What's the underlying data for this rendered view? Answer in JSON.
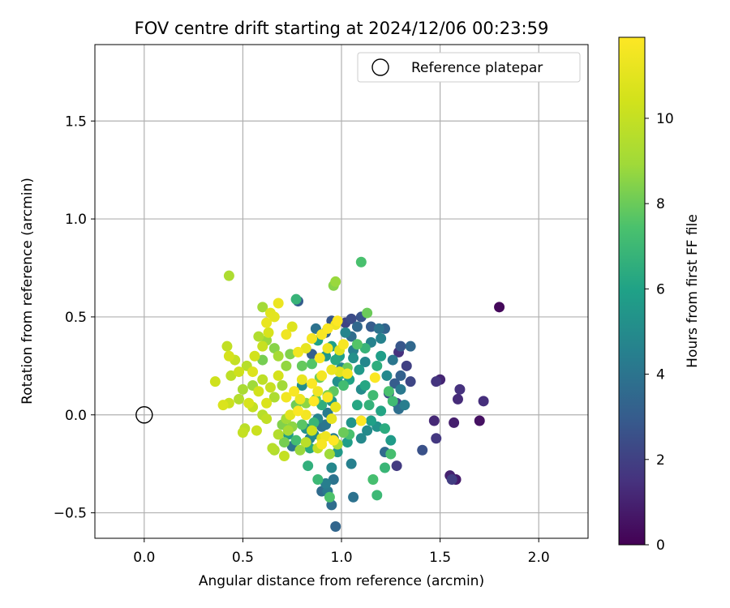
{
  "chart_data": {
    "type": "scatter",
    "title": "FOV centre drift starting at 2024/12/06 00:23:59",
    "xlabel": "Angular distance from reference (arcmin)",
    "ylabel": "Rotation from reference (arcmin)",
    "xlim": [
      -0.25,
      2.25
    ],
    "ylim": [
      -0.63,
      1.89
    ],
    "xticks": [
      0.0,
      0.5,
      1.0,
      1.5,
      2.0
    ],
    "xtick_labels": [
      "0.0",
      "0.5",
      "1.0",
      "1.5",
      "2.0"
    ],
    "yticks": [
      -0.5,
      0.0,
      0.5,
      1.0,
      1.5
    ],
    "ytick_labels": [
      "−0.5",
      "0.0",
      "0.5",
      "1.0",
      "1.5"
    ],
    "grid": true,
    "legend": {
      "location": "upper right",
      "entries": [
        "Reference platepar"
      ]
    },
    "reference_point": {
      "label": "Reference platepar",
      "x": 0.0,
      "y": 0.0,
      "marker": "open-circle"
    },
    "colorbar": {
      "label": "Hours from first FF file",
      "colormap": "viridis",
      "range": [
        0,
        11.9
      ],
      "ticks": [
        0,
        2,
        4,
        6,
        8,
        10
      ],
      "tick_labels": [
        "0",
        "2",
        "4",
        "6",
        "8",
        "10"
      ]
    },
    "series": [
      {
        "points": [
          [
            1.8,
            0.55,
            0.2
          ],
          [
            1.7,
            -0.03,
            0.5
          ],
          [
            1.58,
            -0.33,
            0.8
          ],
          [
            1.55,
            -0.31,
            1.0
          ],
          [
            1.59,
            0.08,
            1.3
          ],
          [
            1.6,
            0.13,
            1.5
          ],
          [
            1.72,
            0.07,
            1.4
          ],
          [
            1.5,
            0.18,
            1.1
          ],
          [
            1.48,
            0.17,
            1.6
          ],
          [
            1.48,
            -0.12,
            1.7
          ],
          [
            1.47,
            -0.03,
            1.2
          ],
          [
            1.57,
            -0.04,
            0.9
          ],
          [
            1.56,
            -0.33,
            1.9
          ],
          [
            1.35,
            0.17,
            2.2
          ],
          [
            1.41,
            -0.18,
            2.6
          ],
          [
            1.28,
            -0.26,
            1.8
          ],
          [
            1.33,
            0.25,
            2.0
          ],
          [
            1.29,
            0.32,
            1.5
          ],
          [
            1.28,
            0.06,
            2.4
          ],
          [
            1.27,
            0.16,
            3.0
          ],
          [
            1.35,
            0.35,
            3.5
          ],
          [
            1.3,
            0.35,
            2.8
          ],
          [
            1.3,
            0.2,
            3.2
          ],
          [
            1.29,
            0.03,
            3.8
          ],
          [
            1.3,
            0.13,
            4.2
          ],
          [
            1.32,
            0.05,
            4.4
          ],
          [
            1.24,
            0.11,
            2.5
          ],
          [
            1.22,
            -0.19,
            3.6
          ],
          [
            1.22,
            0.44,
            3.3
          ],
          [
            1.19,
            0.44,
            4.0
          ],
          [
            1.15,
            0.45,
            3.0
          ],
          [
            1.15,
            0.37,
            4.6
          ],
          [
            1.12,
            0.27,
            4.8
          ],
          [
            1.1,
            0.5,
            2.7
          ],
          [
            1.05,
            0.49,
            2.4
          ],
          [
            1.02,
            0.47,
            2.1
          ],
          [
            0.95,
            0.48,
            2.8
          ],
          [
            0.92,
            0.42,
            3.4
          ],
          [
            0.87,
            0.44,
            3.9
          ],
          [
            0.85,
            0.31,
            3.1
          ],
          [
            1.05,
            0.4,
            3.7
          ],
          [
            1.06,
            0.33,
            4.5
          ],
          [
            1.0,
            0.24,
            4.9
          ],
          [
            0.98,
            0.17,
            5.2
          ],
          [
            0.95,
            0.07,
            5.5
          ],
          [
            0.93,
            0.01,
            4.3
          ],
          [
            0.92,
            -0.05,
            4.1
          ],
          [
            0.88,
            -0.02,
            4.7
          ],
          [
            0.9,
            -0.06,
            3.9
          ],
          [
            0.86,
            -0.1,
            5.0
          ],
          [
            0.84,
            -0.12,
            4.6
          ],
          [
            0.82,
            -0.07,
            5.3
          ],
          [
            0.75,
            -0.16,
            4.0
          ],
          [
            0.73,
            -0.1,
            5.7
          ],
          [
            0.78,
            0.58,
            3.0
          ],
          [
            0.8,
            0.15,
            5.1
          ],
          [
            0.96,
            -0.12,
            4.4
          ],
          [
            0.98,
            -0.19,
            5.6
          ],
          [
            1.03,
            -0.14,
            5.8
          ],
          [
            1.05,
            -0.04,
            5.4
          ],
          [
            1.1,
            -0.12,
            4.9
          ],
          [
            1.13,
            -0.08,
            5.0
          ],
          [
            1.15,
            -0.03,
            5.9
          ],
          [
            1.18,
            -0.06,
            5.3
          ],
          [
            1.2,
            0.02,
            6.1
          ],
          [
            1.22,
            -0.07,
            6.4
          ],
          [
            1.25,
            -0.13,
            5.7
          ],
          [
            1.1,
            0.13,
            5.0
          ],
          [
            1.08,
            0.05,
            6.2
          ],
          [
            1.04,
            0.18,
            6.0
          ],
          [
            1.0,
            0.21,
            6.6
          ],
          [
            0.99,
            0.3,
            5.8
          ],
          [
            0.97,
            -0.57,
            3.4
          ],
          [
            0.95,
            -0.46,
            3.7
          ],
          [
            0.93,
            -0.39,
            4.2
          ],
          [
            0.9,
            -0.39,
            3.6
          ],
          [
            0.92,
            -0.35,
            4.4
          ],
          [
            0.96,
            -0.33,
            4.0
          ],
          [
            0.95,
            -0.27,
            4.8
          ],
          [
            1.05,
            -0.25,
            4.5
          ],
          [
            1.06,
            -0.42,
            3.9
          ],
          [
            0.83,
            -0.26,
            6.6
          ],
          [
            0.88,
            -0.33,
            7.0
          ],
          [
            0.94,
            -0.42,
            7.5
          ],
          [
            1.16,
            -0.33,
            7.3
          ],
          [
            1.18,
            -0.41,
            7.0
          ],
          [
            1.22,
            -0.27,
            6.9
          ],
          [
            1.25,
            -0.2,
            7.3
          ],
          [
            1.26,
            0.07,
            7.1
          ],
          [
            1.24,
            0.12,
            7.4
          ],
          [
            1.1,
            0.78,
            7.4
          ],
          [
            1.13,
            0.52,
            8.0
          ],
          [
            0.96,
            0.66,
            8.5
          ],
          [
            0.97,
            0.68,
            8.8
          ],
          [
            0.77,
            0.59,
            6.8
          ],
          [
            0.6,
            0.55,
            9.0
          ],
          [
            0.43,
            0.71,
            9.3
          ],
          [
            1.12,
            0.34,
            6.8
          ],
          [
            1.08,
            0.36,
            7.6
          ],
          [
            1.03,
            0.24,
            8.0
          ],
          [
            1.01,
            0.15,
            7.2
          ],
          [
            0.96,
            0.12,
            7.8
          ],
          [
            0.93,
            0.1,
            8.3
          ],
          [
            0.87,
            0.08,
            7.5
          ],
          [
            0.82,
            0.06,
            8.6
          ],
          [
            0.77,
            0.05,
            8.1
          ],
          [
            0.72,
            -0.02,
            9.0
          ],
          [
            0.7,
            -0.05,
            8.4
          ],
          [
            0.73,
            -0.08,
            9.2
          ],
          [
            0.68,
            -0.1,
            9.5
          ],
          [
            0.65,
            -0.17,
            9.6
          ],
          [
            0.71,
            -0.21,
            10.0
          ],
          [
            0.66,
            -0.18,
            9.4
          ],
          [
            0.62,
            -0.02,
            9.9
          ],
          [
            0.57,
            -0.08,
            10.2
          ],
          [
            0.5,
            -0.09,
            10.0
          ],
          [
            0.51,
            -0.07,
            9.7
          ],
          [
            0.48,
            0.08,
            9.5
          ],
          [
            0.43,
            0.06,
            10.2
          ],
          [
            0.44,
            0.2,
            9.8
          ],
          [
            0.46,
            0.28,
            10.0
          ],
          [
            0.42,
            0.35,
            9.9
          ],
          [
            0.43,
            0.3,
            10.5
          ],
          [
            0.48,
            0.22,
            10.3
          ],
          [
            0.52,
            0.25,
            9.6
          ],
          [
            0.56,
            0.3,
            10.4
          ],
          [
            0.55,
            0.22,
            10.8
          ],
          [
            0.6,
            0.35,
            10.1
          ],
          [
            0.63,
            0.42,
            10.6
          ],
          [
            0.62,
            0.47,
            11.2
          ],
          [
            0.64,
            0.52,
            10.9
          ],
          [
            0.66,
            0.5,
            11.0
          ],
          [
            0.68,
            0.57,
            11.3
          ],
          [
            0.72,
            0.41,
            11.4
          ],
          [
            0.75,
            0.45,
            10.8
          ],
          [
            0.78,
            0.32,
            11.5
          ],
          [
            0.82,
            0.34,
            11.1
          ],
          [
            0.85,
            0.39,
            11.6
          ],
          [
            0.9,
            0.41,
            11.7
          ],
          [
            0.93,
            0.44,
            11.8
          ],
          [
            0.97,
            0.46,
            11.5
          ],
          [
            0.98,
            0.48,
            11.9
          ],
          [
            0.89,
            0.29,
            11.8
          ],
          [
            0.93,
            0.34,
            11.4
          ],
          [
            0.99,
            0.33,
            10.9
          ],
          [
            1.01,
            0.36,
            11.7
          ],
          [
            0.95,
            0.23,
            11.3
          ],
          [
            0.9,
            0.2,
            11.6
          ],
          [
            0.85,
            0.16,
            11.8
          ],
          [
            0.8,
            0.18,
            11.2
          ],
          [
            0.76,
            0.12,
            11.7
          ],
          [
            0.72,
            0.09,
            11.5
          ],
          [
            0.74,
            0.0,
            11.0
          ],
          [
            0.78,
            0.02,
            11.8
          ],
          [
            0.79,
            0.08,
            11.3
          ],
          [
            0.82,
            0.0,
            11.6
          ],
          [
            0.86,
            0.07,
            11.9
          ],
          [
            0.88,
            0.12,
            11.4
          ],
          [
            0.93,
            0.09,
            11.7
          ],
          [
            0.97,
            0.04,
            11.2
          ],
          [
            0.96,
            -0.13,
            11.9
          ],
          [
            0.92,
            -0.11,
            11.4
          ],
          [
            0.9,
            -0.15,
            11.7
          ],
          [
            0.95,
            -0.02,
            11.1
          ],
          [
            1.1,
            -0.03,
            11.9
          ],
          [
            1.17,
            0.19,
            11.8
          ],
          [
            1.03,
            0.21,
            11.6
          ],
          [
            0.99,
            0.22,
            11.0
          ],
          [
            0.68,
            0.2,
            10.5
          ],
          [
            0.64,
            0.14,
            10.1
          ],
          [
            0.6,
            0.18,
            9.8
          ],
          [
            0.58,
            0.12,
            10.4
          ],
          [
            0.55,
            0.04,
            10.0
          ],
          [
            0.6,
            0.0,
            9.6
          ],
          [
            0.62,
            0.06,
            10.7
          ],
          [
            0.66,
            0.09,
            9.3
          ],
          [
            0.7,
            0.15,
            9.0
          ],
          [
            0.72,
            0.25,
            8.7
          ],
          [
            0.68,
            0.3,
            9.1
          ],
          [
            0.66,
            0.34,
            8.5
          ],
          [
            0.62,
            0.38,
            8.8
          ],
          [
            0.58,
            0.4,
            9.4
          ],
          [
            0.6,
            0.28,
            8.2
          ],
          [
            0.55,
            0.15,
            8.9
          ],
          [
            0.5,
            0.13,
            9.2
          ],
          [
            0.53,
            0.06,
            10.6
          ],
          [
            0.36,
            0.17,
            10.3
          ],
          [
            0.4,
            0.05,
            10.7
          ],
          [
            0.74,
            0.31,
            8.4
          ],
          [
            0.8,
            0.25,
            7.9
          ],
          [
            0.85,
            0.26,
            7.6
          ],
          [
            0.89,
            0.19,
            8.1
          ],
          [
            0.9,
            0.05,
            6.5
          ],
          [
            0.86,
            -0.04,
            6.9
          ],
          [
            0.8,
            -0.05,
            7.7
          ],
          [
            0.77,
            -0.13,
            7.2
          ],
          [
            0.88,
            0.38,
            6.0
          ],
          [
            0.92,
            0.3,
            5.5
          ],
          [
            0.95,
            0.35,
            5.9
          ],
          [
            0.97,
            0.28,
            6.3
          ],
          [
            1.02,
            0.42,
            4.7
          ],
          [
            1.06,
            0.29,
            5.2
          ],
          [
            1.09,
            0.23,
            5.6
          ],
          [
            1.12,
            0.15,
            6.2
          ],
          [
            1.14,
            0.05,
            6.7
          ],
          [
            1.16,
            0.1,
            7.1
          ],
          [
            1.18,
            0.25,
            6.5
          ],
          [
            1.2,
            0.3,
            5.8
          ],
          [
            1.23,
            0.2,
            4.9
          ],
          [
            1.26,
            0.28,
            4.1
          ],
          [
            1.2,
            0.39,
            4.6
          ],
          [
            1.08,
            0.45,
            3.5
          ],
          [
            0.75,
            -0.06,
            8.6
          ],
          [
            0.71,
            -0.14,
            8.2
          ],
          [
            0.84,
            -0.17,
            6.3
          ],
          [
            0.79,
            -0.18,
            8.8
          ],
          [
            0.82,
            -0.14,
            9.7
          ],
          [
            0.85,
            -0.08,
            10.3
          ],
          [
            0.88,
            -0.17,
            9.9
          ],
          [
            0.9,
            -0.12,
            10.8
          ],
          [
            0.94,
            -0.2,
            8.9
          ],
          [
            0.98,
            -0.15,
            9.3
          ],
          [
            1.01,
            -0.09,
            8.0
          ],
          [
            1.04,
            -0.1,
            7.4
          ]
        ]
      }
    ]
  }
}
